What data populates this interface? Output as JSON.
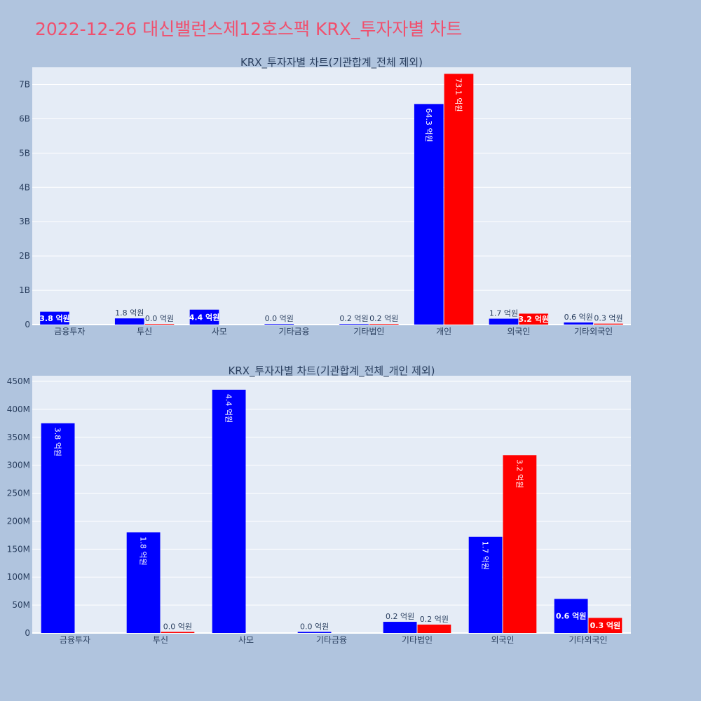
{
  "page_title": "2022-12-26 대신밸런스제12호스팩 KRX_투자자별 차트",
  "colors": {
    "series_a": "#0000ff",
    "series_b": "#ff0000",
    "plot_bg": "#e5ecf6",
    "paper_bg": "#b0c4de",
    "title": "#f0506e"
  },
  "chart_data": [
    {
      "type": "bar",
      "title": "KRX_투자자별 차트(기관합계_전체 제외)",
      "categories": [
        "금융투자",
        "투신",
        "사모",
        "기타금융",
        "기타법인",
        "개인",
        "외국인",
        "기타외국인"
      ],
      "ylim": [
        0,
        7500000000
      ],
      "yticks": [
        0,
        1000000000,
        2000000000,
        3000000000,
        4000000000,
        5000000000,
        6000000000,
        7000000000
      ],
      "ytick_labels": [
        "0",
        "1B",
        "2B",
        "3B",
        "4B",
        "5B",
        "6B",
        "7B"
      ],
      "grid": true,
      "series": [
        {
          "color": "#0000ff",
          "values": [
            375000000,
            180000000,
            435000000,
            2000000,
            20000000,
            6430000000,
            172000000,
            61000000
          ],
          "labels": [
            "3.8 억원",
            "1.8 억원",
            "4.4 억원",
            "0.0 억원",
            "0.2 억원",
            "64.3 억원",
            "1.7 억원",
            "0.6 억원"
          ]
        },
        {
          "color": "#ff0000",
          "values": [
            null,
            2000000,
            null,
            null,
            15000000,
            7310000000,
            318000000,
            27000000
          ],
          "labels": [
            null,
            "0.0 억원",
            null,
            null,
            "0.2 억원",
            "73.1 억원",
            "3.2 억원",
            "0.3 억원"
          ]
        }
      ]
    },
    {
      "type": "bar",
      "title": "KRX_투자자별 차트(기관합계_전체_개인 제외)",
      "categories": [
        "금융투자",
        "투신",
        "사모",
        "기타금융",
        "기타법인",
        "외국인",
        "기타외국인"
      ],
      "ylim": [
        0,
        460000000
      ],
      "yticks": [
        0,
        50000000,
        100000000,
        150000000,
        200000000,
        250000000,
        300000000,
        350000000,
        400000000,
        450000000
      ],
      "ytick_labels": [
        "0",
        "50M",
        "100M",
        "150M",
        "200M",
        "250M",
        "300M",
        "350M",
        "400M",
        "450M"
      ],
      "grid": true,
      "series": [
        {
          "color": "#0000ff",
          "values": [
            375000000,
            180000000,
            435000000,
            2000000,
            20000000,
            172000000,
            61000000
          ],
          "labels": [
            "3.8 억원",
            "1.8 억원",
            "4.4 억원",
            "0.0 억원",
            "0.2 억원",
            "1.7 억원",
            "0.6 억원"
          ]
        },
        {
          "color": "#ff0000",
          "values": [
            null,
            2000000,
            null,
            null,
            15000000,
            318000000,
            27000000
          ],
          "labels": [
            null,
            "0.0 억원",
            null,
            null,
            "0.2 억원",
            "3.2 억원",
            "0.3 억원"
          ]
        }
      ]
    }
  ]
}
